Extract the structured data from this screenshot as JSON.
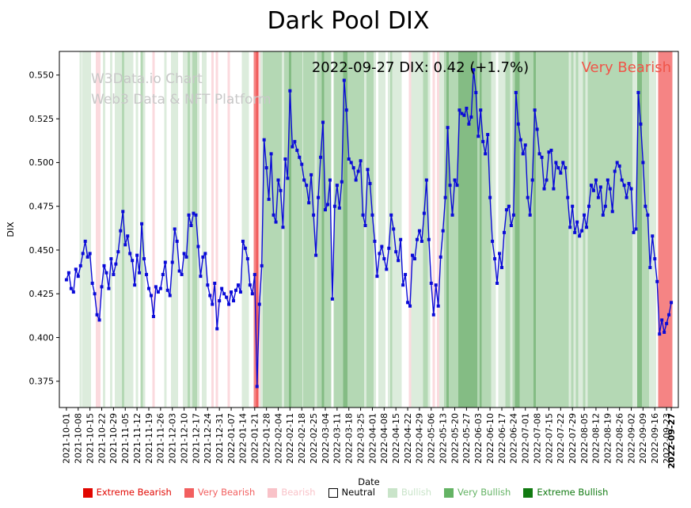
{
  "page": {
    "title": "Dark Pool DIX"
  },
  "watermark": {
    "line1": "W3Data.io Chart",
    "line2": "Web3 Data & NFT Platform",
    "color": "#c8c8c8"
  },
  "annotation": {
    "text": "2022-09-27 DIX: 0.42 (+1.7%)",
    "status": "Very Bearish",
    "status_color": "#f05549"
  },
  "chart_data": {
    "type": "line",
    "title": "Dark Pool DIX",
    "xlabel": "Date",
    "ylabel": "DIX",
    "ylim": [
      0.36,
      0.5635
    ],
    "yticks": [
      0.375,
      0.4,
      0.425,
      0.45,
      0.475,
      0.5,
      0.525,
      0.55
    ],
    "grid": false,
    "legend_position": "bottom",
    "line_color": "#0a0ad8",
    "marker": "square",
    "x_ticks": {
      "positions": [
        0,
        5,
        10,
        15,
        20,
        25,
        30,
        35,
        40,
        45,
        50,
        55,
        60,
        65,
        70,
        75,
        80,
        85,
        90,
        95,
        100,
        105,
        110,
        115,
        120,
        125,
        130,
        135,
        140,
        145,
        150,
        155,
        160,
        165,
        170,
        175,
        180,
        185,
        190,
        195,
        200,
        205,
        210,
        215,
        220,
        225,
        230,
        235,
        240,
        245,
        250,
        255,
        257
      ],
      "labels": [
        "2021-10-01",
        "2021-10-08",
        "2021-10-15",
        "2021-10-22",
        "2021-10-29",
        "2021-11-05",
        "2021-11-12",
        "2021-11-19",
        "2021-11-26",
        "2021-12-03",
        "2021-12-10",
        "2021-12-17",
        "2021-12-24",
        "2021-12-31",
        "2022-01-07",
        "2022-01-14",
        "2022-01-21",
        "2022-01-28",
        "2022-02-04",
        "2022-02-11",
        "2022-02-18",
        "2022-02-25",
        "2022-03-04",
        "2022-03-11",
        "2022-03-18",
        "2022-03-25",
        "2022-04-01",
        "2022-04-08",
        "2022-04-15",
        "2022-04-22",
        "2022-04-29",
        "2022-05-06",
        "2022-05-13",
        "2022-05-20",
        "2022-05-27",
        "2022-06-03",
        "2022-06-10",
        "2022-06-17",
        "2022-06-24",
        "2022-07-01",
        "2022-07-08",
        "2022-07-15",
        "2022-07-22",
        "2022-07-29",
        "2022-08-05",
        "2022-08-12",
        "2022-08-19",
        "2022-08-26",
        "2022-09-02",
        "2022-09-09",
        "2022-09-16",
        "2022-09-23",
        "2022-09-27"
      ]
    },
    "values": [
      0.433,
      0.437,
      0.428,
      0.426,
      0.439,
      0.435,
      0.441,
      0.448,
      0.455,
      0.446,
      0.448,
      0.431,
      0.425,
      0.413,
      0.41,
      0.429,
      0.441,
      0.437,
      0.428,
      0.445,
      0.436,
      0.442,
      0.449,
      0.461,
      0.472,
      0.453,
      0.458,
      0.448,
      0.444,
      0.43,
      0.447,
      0.437,
      0.465,
      0.445,
      0.436,
      0.428,
      0.424,
      0.412,
      0.429,
      0.426,
      0.428,
      0.436,
      0.443,
      0.427,
      0.424,
      0.443,
      0.462,
      0.455,
      0.438,
      0.436,
      0.448,
      0.446,
      0.47,
      0.464,
      0.471,
      0.47,
      0.452,
      0.435,
      0.446,
      0.448,
      0.43,
      0.424,
      0.419,
      0.431,
      0.405,
      0.421,
      0.428,
      0.425,
      0.423,
      0.419,
      0.426,
      0.421,
      0.427,
      0.43,
      0.426,
      0.455,
      0.451,
      0.445,
      0.43,
      0.425,
      0.436,
      0.372,
      0.419,
      0.441,
      0.513,
      0.497,
      0.479,
      0.505,
      0.47,
      0.466,
      0.49,
      0.484,
      0.463,
      0.502,
      0.491,
      0.541,
      0.509,
      0.512,
      0.507,
      0.503,
      0.499,
      0.49,
      0.487,
      0.477,
      0.493,
      0.47,
      0.447,
      0.48,
      0.503,
      0.523,
      0.473,
      0.476,
      0.49,
      0.422,
      0.475,
      0.487,
      0.474,
      0.489,
      0.547,
      0.53,
      0.502,
      0.5,
      0.497,
      0.49,
      0.495,
      0.501,
      0.47,
      0.464,
      0.496,
      0.488,
      0.47,
      0.455,
      0.435,
      0.448,
      0.452,
      0.445,
      0.439,
      0.451,
      0.47,
      0.462,
      0.449,
      0.444,
      0.456,
      0.43,
      0.436,
      0.42,
      0.418,
      0.447,
      0.445,
      0.456,
      0.461,
      0.455,
      0.471,
      0.49,
      0.456,
      0.431,
      0.413,
      0.43,
      0.418,
      0.446,
      0.461,
      0.48,
      0.52,
      0.487,
      0.47,
      0.49,
      0.487,
      0.53,
      0.528,
      0.527,
      0.531,
      0.522,
      0.526,
      0.553,
      0.54,
      0.515,
      0.53,
      0.512,
      0.505,
      0.516,
      0.48,
      0.455,
      0.445,
      0.431,
      0.448,
      0.44,
      0.46,
      0.473,
      0.475,
      0.464,
      0.47,
      0.54,
      0.522,
      0.513,
      0.505,
      0.51,
      0.48,
      0.47,
      0.49,
      0.53,
      0.519,
      0.505,
      0.503,
      0.485,
      0.49,
      0.506,
      0.507,
      0.485,
      0.5,
      0.497,
      0.494,
      0.5,
      0.497,
      0.48,
      0.463,
      0.475,
      0.46,
      0.466,
      0.458,
      0.461,
      0.47,
      0.463,
      0.475,
      0.487,
      0.484,
      0.49,
      0.48,
      0.486,
      0.47,
      0.475,
      0.49,
      0.485,
      0.472,
      0.495,
      0.5,
      0.498,
      0.49,
      0.487,
      0.48,
      0.488,
      0.485,
      0.46,
      0.462,
      0.54,
      0.522,
      0.5,
      0.475,
      0.47,
      0.44,
      0.458,
      0.445,
      0.432,
      0.402,
      0.41,
      0.403,
      0.408,
      0.413,
      0.42
    ],
    "sentiment": {
      "bins": [
        {
          "min": 0.52,
          "code": 3
        },
        {
          "min": 0.465,
          "code": 2
        },
        {
          "min": 0.44,
          "code": 1
        },
        {
          "min": 0.42,
          "code": 0
        },
        {
          "min": 0.405,
          "code": -1
        },
        {
          "min": 0.385,
          "code": -2
        },
        {
          "min": -9,
          "code": -3
        }
      ],
      "overrides": {
        "80": -2,
        "252": -2,
        "253": -2,
        "254": -2,
        "255": -2,
        "256": -2,
        "257": -2
      },
      "band_colors": {
        "3": "#84bc84",
        "2": "#b4d8b4",
        "1": "#dcecdc",
        "0": "",
        "-1": "#fbdade",
        "-2": "#f58484",
        "-3": "#f15b5b"
      }
    },
    "legend": [
      {
        "label": "Extreme Bearish",
        "color": "#e10600"
      },
      {
        "label": "Very Bearish",
        "color": "#f25f5f"
      },
      {
        "label": "Bearish",
        "color": "#f9c2c8"
      },
      {
        "label": "Neutral",
        "color": "#ffffff",
        "text_color": "#000000",
        "border": "#000000"
      },
      {
        "label": "Bullish",
        "color": "#c9e4c9"
      },
      {
        "label": "Very Bullish",
        "color": "#64b364"
      },
      {
        "label": "Extreme Bullish",
        "color": "#117a11"
      }
    ]
  }
}
